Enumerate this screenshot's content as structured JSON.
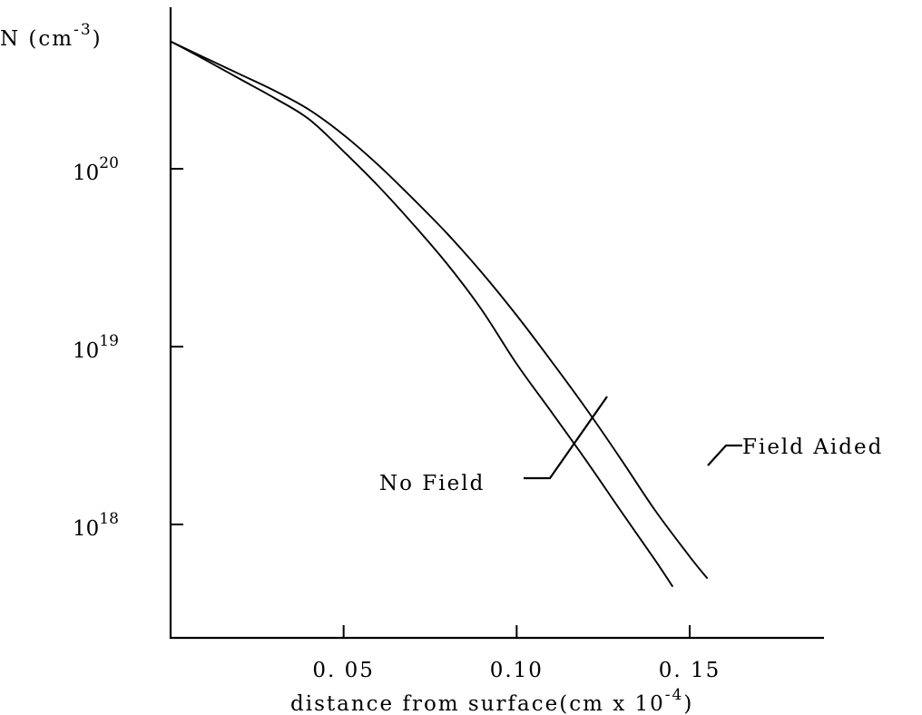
{
  "chart_data": {
    "type": "line",
    "ylabel": {
      "base": "N (cm",
      "exp": "-3",
      "close": ")"
    },
    "xlabel": {
      "base": "distance from surface(cm x 10",
      "exp": "-4",
      "close": ")"
    },
    "xlim": [
      0,
      0.19
    ],
    "ylim_log10": [
      17.5,
      20.8
    ],
    "x_ticks": [
      {
        "value": 0.05,
        "label": "0. 05"
      },
      {
        "value": 0.1,
        "label": "0.10"
      },
      {
        "value": 0.15,
        "label": "0. 15"
      }
    ],
    "y_ticks": [
      {
        "log10": 20,
        "base": "10",
        "exp": "20"
      },
      {
        "log10": 19,
        "base": "10",
        "exp": "19"
      },
      {
        "log10": 18,
        "base": "10",
        "exp": "18"
      }
    ],
    "series": [
      {
        "name": "No Field",
        "points": [
          [
            0.0,
            5.2e+20
          ],
          [
            0.01,
            4.1e+20
          ],
          [
            0.02,
            3.2e+20
          ],
          [
            0.03,
            2.5e+20
          ],
          [
            0.04,
            1.9e+20
          ],
          [
            0.05,
            1.25e+20
          ],
          [
            0.06,
            8e+19
          ],
          [
            0.07,
            4.9e+19
          ],
          [
            0.08,
            2.9e+19
          ],
          [
            0.09,
            1.6e+19
          ],
          [
            0.1,
            8e+18
          ],
          [
            0.11,
            4.3e+18
          ],
          [
            0.12,
            2.3e+18
          ],
          [
            0.13,
            1.2e+18
          ],
          [
            0.14,
            6.3e+17
          ],
          [
            0.145,
            4.5e+17
          ]
        ]
      },
      {
        "name": "Field Aided",
        "points": [
          [
            0.0,
            5.2e+20
          ],
          [
            0.01,
            4.2e+20
          ],
          [
            0.02,
            3.4e+20
          ],
          [
            0.03,
            2.75e+20
          ],
          [
            0.04,
            2.15e+20
          ],
          [
            0.05,
            1.55e+20
          ],
          [
            0.06,
            1.05e+20
          ],
          [
            0.07,
            6.8e+19
          ],
          [
            0.08,
            4.3e+19
          ],
          [
            0.09,
            2.6e+19
          ],
          [
            0.1,
            1.5e+19
          ],
          [
            0.11,
            8.3e+18
          ],
          [
            0.12,
            4.5e+18
          ],
          [
            0.13,
            2.35e+18
          ],
          [
            0.14,
            1.2e+18
          ],
          [
            0.15,
            6.6e+17
          ],
          [
            0.155,
            5e+17
          ]
        ]
      }
    ],
    "annotations": [
      {
        "text": "No Field",
        "series": "No Field"
      },
      {
        "text": "Field Aided",
        "series": "Field Aided"
      }
    ],
    "grid": false,
    "legend": "none"
  }
}
